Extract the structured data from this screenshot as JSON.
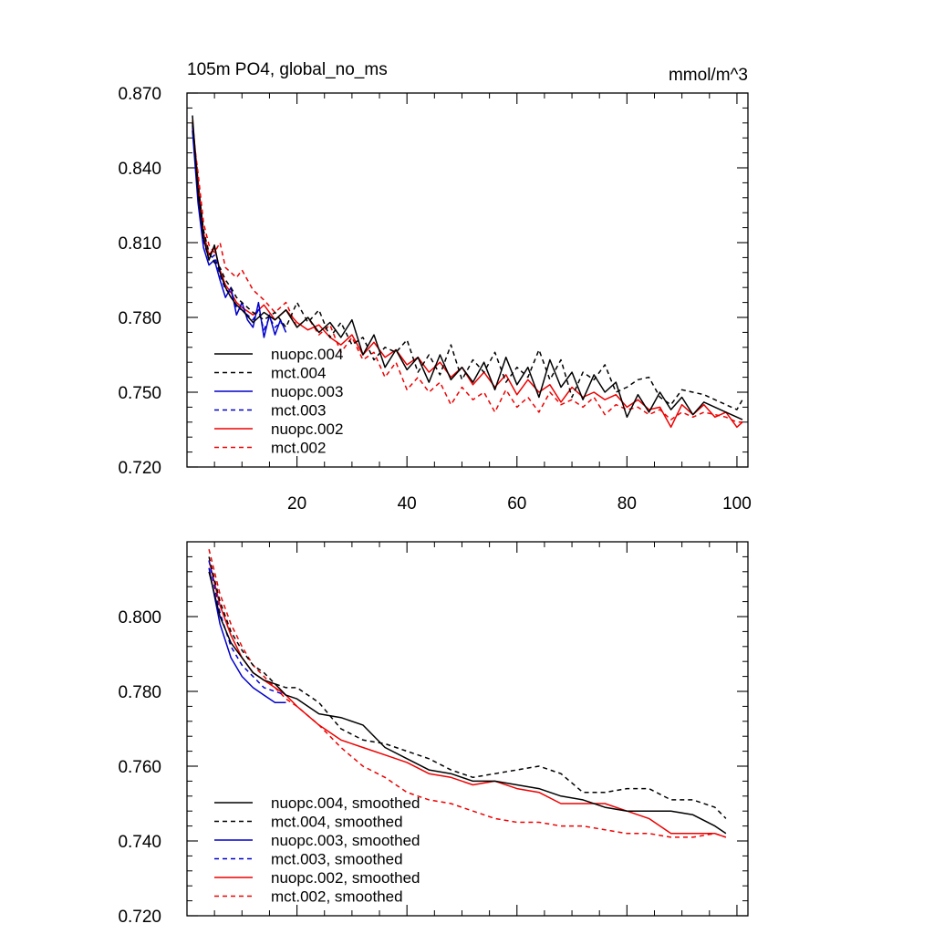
{
  "chart_data": [
    {
      "type": "line",
      "title": "105m PO4, global_no_ms",
      "units": "mmol/m^3",
      "xlabel": "",
      "ylabel": "",
      "xlim": [
        0,
        102
      ],
      "ylim": [
        0.72,
        0.87
      ],
      "xticks": [
        20,
        40,
        60,
        80,
        100
      ],
      "xtick_labels": [
        "20",
        "40",
        "60",
        "80",
        "100"
      ],
      "yticks": [
        0.72,
        0.75,
        0.78,
        0.81,
        0.84,
        0.87
      ],
      "ytick_labels": [
        "0.720",
        "0.750",
        "0.780",
        "0.810",
        "0.840",
        "0.870"
      ],
      "legend_position": "bottom-left",
      "series": [
        {
          "name": "nuopc.004",
          "color": "#000000",
          "dash": "solid",
          "x": [
            1,
            2,
            3,
            4,
            5,
            6,
            7,
            8,
            9,
            10,
            12,
            14,
            16,
            18,
            20,
            22,
            24,
            26,
            28,
            30,
            32,
            34,
            36,
            38,
            40,
            42,
            44,
            46,
            48,
            50,
            52,
            54,
            56,
            58,
            60,
            62,
            64,
            66,
            68,
            70,
            72,
            74,
            76,
            78,
            80,
            82,
            84,
            86,
            88,
            90,
            92,
            94,
            96,
            98,
            100,
            101
          ],
          "values": [
            0.861,
            0.83,
            0.812,
            0.803,
            0.809,
            0.798,
            0.792,
            0.788,
            0.785,
            0.783,
            0.778,
            0.782,
            0.779,
            0.783,
            0.776,
            0.78,
            0.774,
            0.778,
            0.772,
            0.779,
            0.765,
            0.773,
            0.76,
            0.767,
            0.759,
            0.764,
            0.754,
            0.765,
            0.755,
            0.76,
            0.754,
            0.762,
            0.751,
            0.764,
            0.753,
            0.76,
            0.748,
            0.763,
            0.752,
            0.758,
            0.747,
            0.757,
            0.75,
            0.754,
            0.74,
            0.749,
            0.742,
            0.75,
            0.743,
            0.748,
            0.741,
            0.746,
            0.744,
            0.742,
            0.74,
            0.739
          ]
        },
        {
          "name": "mct.004",
          "color": "#000000",
          "dash": "dashed",
          "x": [
            1,
            2,
            3,
            4,
            5,
            6,
            7,
            8,
            9,
            10,
            12,
            14,
            16,
            18,
            20,
            22,
            24,
            26,
            28,
            30,
            32,
            34,
            36,
            38,
            40,
            42,
            44,
            46,
            48,
            50,
            52,
            54,
            56,
            58,
            60,
            62,
            64,
            66,
            68,
            70,
            72,
            74,
            76,
            78,
            80,
            82,
            84,
            86,
            88,
            90,
            92,
            94,
            96,
            98,
            100,
            101
          ],
          "values": [
            0.858,
            0.833,
            0.815,
            0.806,
            0.802,
            0.8,
            0.795,
            0.792,
            0.788,
            0.786,
            0.782,
            0.779,
            0.782,
            0.776,
            0.786,
            0.778,
            0.783,
            0.772,
            0.778,
            0.769,
            0.772,
            0.763,
            0.768,
            0.766,
            0.771,
            0.758,
            0.765,
            0.757,
            0.769,
            0.755,
            0.763,
            0.758,
            0.766,
            0.754,
            0.76,
            0.756,
            0.767,
            0.755,
            0.763,
            0.748,
            0.758,
            0.755,
            0.761,
            0.75,
            0.752,
            0.755,
            0.756,
            0.748,
            0.745,
            0.751,
            0.75,
            0.749,
            0.747,
            0.745,
            0.743,
            0.747
          ]
        },
        {
          "name": "nuopc.003",
          "color": "#0000cc",
          "dash": "solid",
          "x": [
            1,
            2,
            3,
            4,
            5,
            6,
            7,
            8,
            9,
            10,
            11,
            12,
            13,
            14,
            15,
            16,
            17,
            18
          ],
          "values": [
            0.855,
            0.826,
            0.808,
            0.801,
            0.803,
            0.795,
            0.788,
            0.792,
            0.781,
            0.786,
            0.779,
            0.776,
            0.786,
            0.772,
            0.781,
            0.773,
            0.779,
            0.774
          ]
        },
        {
          "name": "mct.003",
          "color": "#0000cc",
          "dash": "dashed",
          "x": [
            1,
            2,
            3,
            4,
            5,
            6,
            7,
            8,
            9,
            10,
            11,
            12,
            13,
            14,
            15,
            16,
            17,
            18
          ],
          "values": [
            0.857,
            0.83,
            0.811,
            0.803,
            0.805,
            0.797,
            0.791,
            0.79,
            0.784,
            0.783,
            0.781,
            0.779,
            0.783,
            0.775,
            0.78,
            0.776,
            0.778,
            0.776
          ]
        },
        {
          "name": "nuopc.002",
          "color": "#ee0000",
          "dash": "solid",
          "x": [
            1,
            2,
            3,
            4,
            5,
            6,
            7,
            8,
            9,
            10,
            12,
            14,
            16,
            18,
            20,
            22,
            24,
            26,
            28,
            30,
            32,
            34,
            36,
            38,
            40,
            42,
            44,
            46,
            48,
            50,
            52,
            54,
            56,
            58,
            60,
            62,
            64,
            66,
            68,
            70,
            72,
            74,
            76,
            78,
            80,
            82,
            84,
            86,
            88,
            90,
            92,
            94,
            96,
            98,
            100,
            101
          ],
          "values": [
            0.859,
            0.835,
            0.814,
            0.805,
            0.808,
            0.799,
            0.793,
            0.79,
            0.786,
            0.784,
            0.781,
            0.785,
            0.779,
            0.783,
            0.778,
            0.775,
            0.777,
            0.772,
            0.769,
            0.773,
            0.765,
            0.77,
            0.764,
            0.767,
            0.761,
            0.764,
            0.758,
            0.762,
            0.756,
            0.76,
            0.753,
            0.758,
            0.752,
            0.757,
            0.749,
            0.755,
            0.75,
            0.753,
            0.746,
            0.752,
            0.748,
            0.75,
            0.747,
            0.749,
            0.744,
            0.747,
            0.743,
            0.744,
            0.736,
            0.745,
            0.741,
            0.745,
            0.74,
            0.742,
            0.736,
            0.738
          ]
        },
        {
          "name": "mct.002",
          "color": "#ee0000",
          "dash": "dashed",
          "x": [
            1,
            2,
            3,
            4,
            5,
            6,
            7,
            8,
            9,
            10,
            12,
            14,
            16,
            18,
            20,
            22,
            24,
            26,
            28,
            30,
            32,
            34,
            36,
            38,
            40,
            42,
            44,
            46,
            48,
            50,
            52,
            54,
            56,
            58,
            60,
            62,
            64,
            66,
            68,
            70,
            72,
            74,
            76,
            78,
            80,
            82,
            84,
            86,
            88,
            90,
            92,
            94,
            96,
            98,
            100,
            101
          ],
          "values": [
            0.856,
            0.838,
            0.818,
            0.809,
            0.806,
            0.81,
            0.8,
            0.798,
            0.796,
            0.799,
            0.791,
            0.787,
            0.782,
            0.786,
            0.776,
            0.78,
            0.773,
            0.777,
            0.766,
            0.772,
            0.763,
            0.766,
            0.756,
            0.762,
            0.751,
            0.756,
            0.75,
            0.754,
            0.745,
            0.752,
            0.747,
            0.75,
            0.742,
            0.751,
            0.744,
            0.748,
            0.742,
            0.75,
            0.745,
            0.747,
            0.744,
            0.748,
            0.741,
            0.745,
            0.743,
            0.744,
            0.741,
            0.743,
            0.739,
            0.742,
            0.74,
            0.742,
            0.741,
            0.74,
            0.738,
            0.738
          ]
        }
      ]
    },
    {
      "type": "line",
      "title": "",
      "xlabel": "",
      "ylabel": "",
      "xlim": [
        0,
        102
      ],
      "ylim": [
        0.72,
        0.82
      ],
      "xticks": [
        20,
        40,
        60,
        80,
        100
      ],
      "xtick_labels": [],
      "yticks": [
        0.72,
        0.74,
        0.76,
        0.78,
        0.8
      ],
      "ytick_labels": [
        "0.720",
        "0.740",
        "0.760",
        "0.780",
        "0.800"
      ],
      "legend_position": "bottom-left",
      "series": [
        {
          "name": "nuopc.004, smoothed",
          "color": "#000000",
          "dash": "solid",
          "x": [
            4,
            6,
            8,
            10,
            12,
            14,
            16,
            18,
            20,
            24,
            28,
            32,
            36,
            40,
            44,
            48,
            52,
            56,
            60,
            64,
            68,
            72,
            76,
            80,
            84,
            88,
            92,
            96,
            98
          ],
          "values": [
            0.812,
            0.8,
            0.793,
            0.789,
            0.785,
            0.783,
            0.782,
            0.779,
            0.778,
            0.774,
            0.773,
            0.771,
            0.765,
            0.762,
            0.759,
            0.758,
            0.756,
            0.756,
            0.755,
            0.754,
            0.752,
            0.751,
            0.749,
            0.748,
            0.748,
            0.748,
            0.747,
            0.744,
            0.742
          ]
        },
        {
          "name": "mct.004, smoothed",
          "color": "#000000",
          "dash": "dashed",
          "x": [
            4,
            6,
            8,
            10,
            12,
            14,
            16,
            18,
            20,
            24,
            28,
            32,
            36,
            40,
            44,
            48,
            52,
            56,
            60,
            64,
            68,
            72,
            76,
            80,
            84,
            88,
            92,
            96,
            98
          ],
          "values": [
            0.816,
            0.804,
            0.796,
            0.791,
            0.787,
            0.785,
            0.782,
            0.781,
            0.781,
            0.777,
            0.77,
            0.767,
            0.766,
            0.764,
            0.762,
            0.759,
            0.757,
            0.758,
            0.759,
            0.76,
            0.758,
            0.753,
            0.753,
            0.754,
            0.754,
            0.751,
            0.751,
            0.749,
            0.746
          ]
        },
        {
          "name": "nuopc.003, smoothed",
          "color": "#0000cc",
          "dash": "solid",
          "x": [
            4,
            6,
            8,
            10,
            12,
            14,
            16,
            18
          ],
          "values": [
            0.813,
            0.798,
            0.789,
            0.784,
            0.781,
            0.779,
            0.777,
            0.777
          ]
        },
        {
          "name": "mct.003, smoothed",
          "color": "#0000cc",
          "dash": "dashed",
          "x": [
            4,
            6,
            8,
            10,
            12,
            14,
            16,
            18
          ],
          "values": [
            0.815,
            0.801,
            0.792,
            0.787,
            0.784,
            0.781,
            0.78,
            0.779
          ]
        },
        {
          "name": "nuopc.002, smoothed",
          "color": "#ee0000",
          "dash": "solid",
          "x": [
            4,
            6,
            8,
            10,
            12,
            14,
            16,
            18,
            20,
            24,
            28,
            32,
            36,
            40,
            44,
            48,
            52,
            56,
            60,
            64,
            68,
            72,
            76,
            80,
            84,
            88,
            92,
            96,
            98
          ],
          "values": [
            0.815,
            0.803,
            0.795,
            0.789,
            0.785,
            0.783,
            0.781,
            0.779,
            0.776,
            0.771,
            0.767,
            0.765,
            0.763,
            0.761,
            0.758,
            0.757,
            0.755,
            0.756,
            0.754,
            0.753,
            0.75,
            0.75,
            0.75,
            0.748,
            0.746,
            0.742,
            0.742,
            0.742,
            0.741
          ]
        },
        {
          "name": "mct.002, smoothed",
          "color": "#ee0000",
          "dash": "dashed",
          "x": [
            4,
            6,
            8,
            10,
            12,
            14,
            16,
            18,
            20,
            24,
            28,
            32,
            36,
            40,
            44,
            48,
            52,
            56,
            60,
            64,
            68,
            72,
            76,
            80,
            84,
            88,
            92,
            96,
            98
          ],
          "values": [
            0.818,
            0.806,
            0.798,
            0.792,
            0.787,
            0.784,
            0.781,
            0.778,
            0.776,
            0.771,
            0.765,
            0.76,
            0.757,
            0.753,
            0.751,
            0.75,
            0.748,
            0.746,
            0.745,
            0.745,
            0.744,
            0.744,
            0.743,
            0.742,
            0.742,
            0.741,
            0.741,
            0.742,
            0.741
          ]
        }
      ]
    }
  ]
}
